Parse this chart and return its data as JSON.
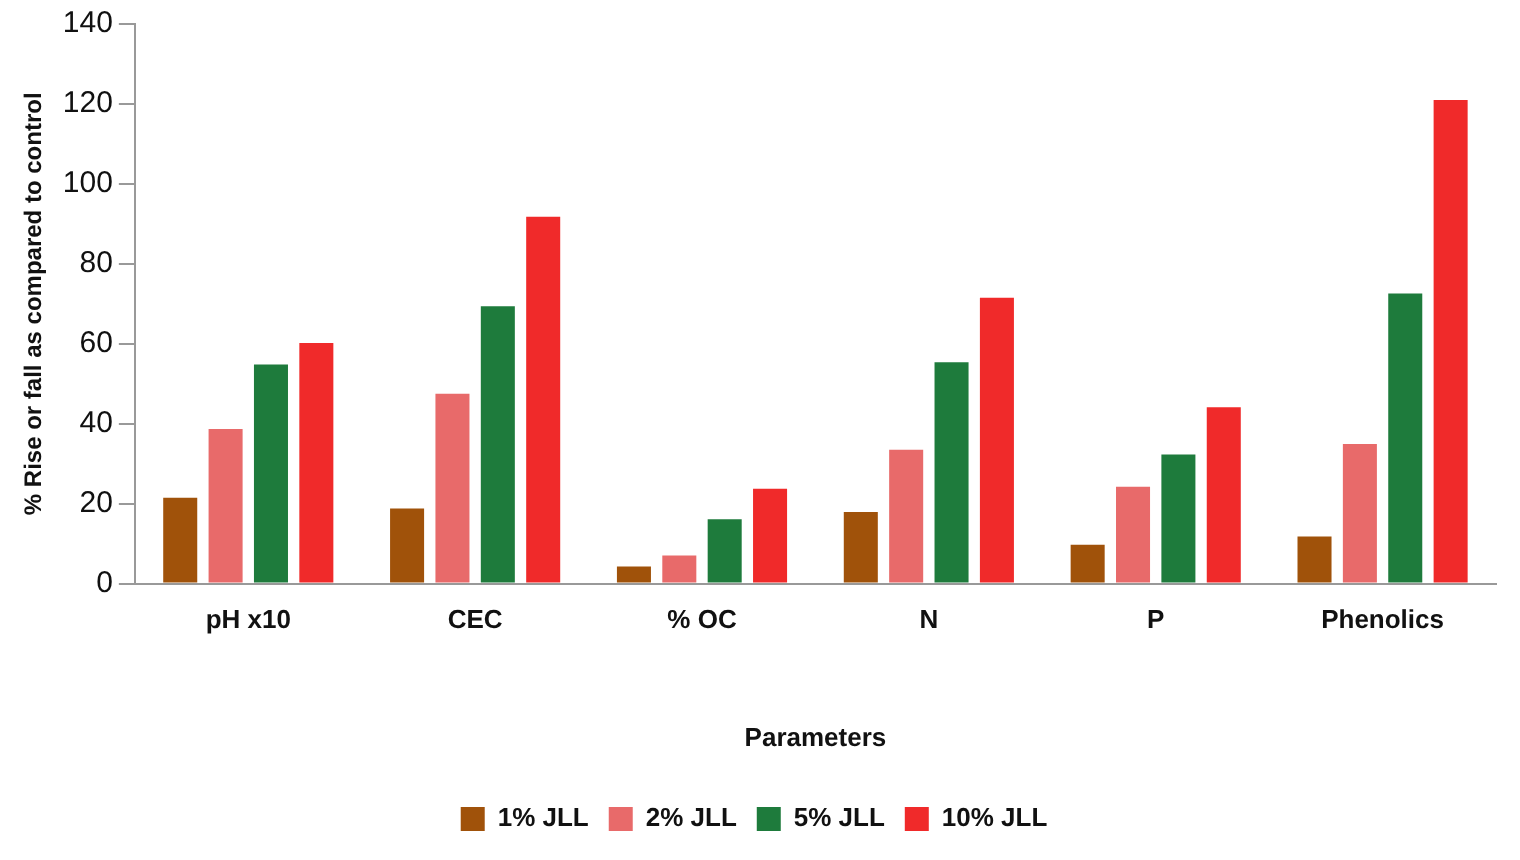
{
  "chart_data": {
    "type": "bar",
    "xlabel": "Parameters",
    "ylabel": "% Rise or fall as compared to control",
    "categories": [
      "pH x10",
      "CEC",
      "% OC",
      "N",
      "P",
      "Phenolics"
    ],
    "series": [
      {
        "name": "1% JLL",
        "color": "#a0520a",
        "values": [
          21.5,
          18.8,
          4.3,
          17.9,
          9.7,
          11.8
        ]
      },
      {
        "name": "2% JLL",
        "color": "#e86a6a",
        "values": [
          38.7,
          47.5,
          7,
          33.5,
          24.2,
          34.9
        ]
      },
      {
        "name": "5% JLL",
        "color": "#1e7b3c",
        "values": [
          54.8,
          69.4,
          16.1,
          55.4,
          32.3,
          72.6
        ]
      },
      {
        "name": "10% JLL",
        "color": "#f02a2a",
        "values": [
          60.2,
          91.8,
          23.7,
          71.5,
          44.1,
          121
        ]
      }
    ],
    "ylim": [
      0,
      140
    ],
    "yticks": [
      0,
      20,
      40,
      60,
      80,
      100,
      120,
      140
    ],
    "grid": false,
    "legend": "bottom"
  }
}
